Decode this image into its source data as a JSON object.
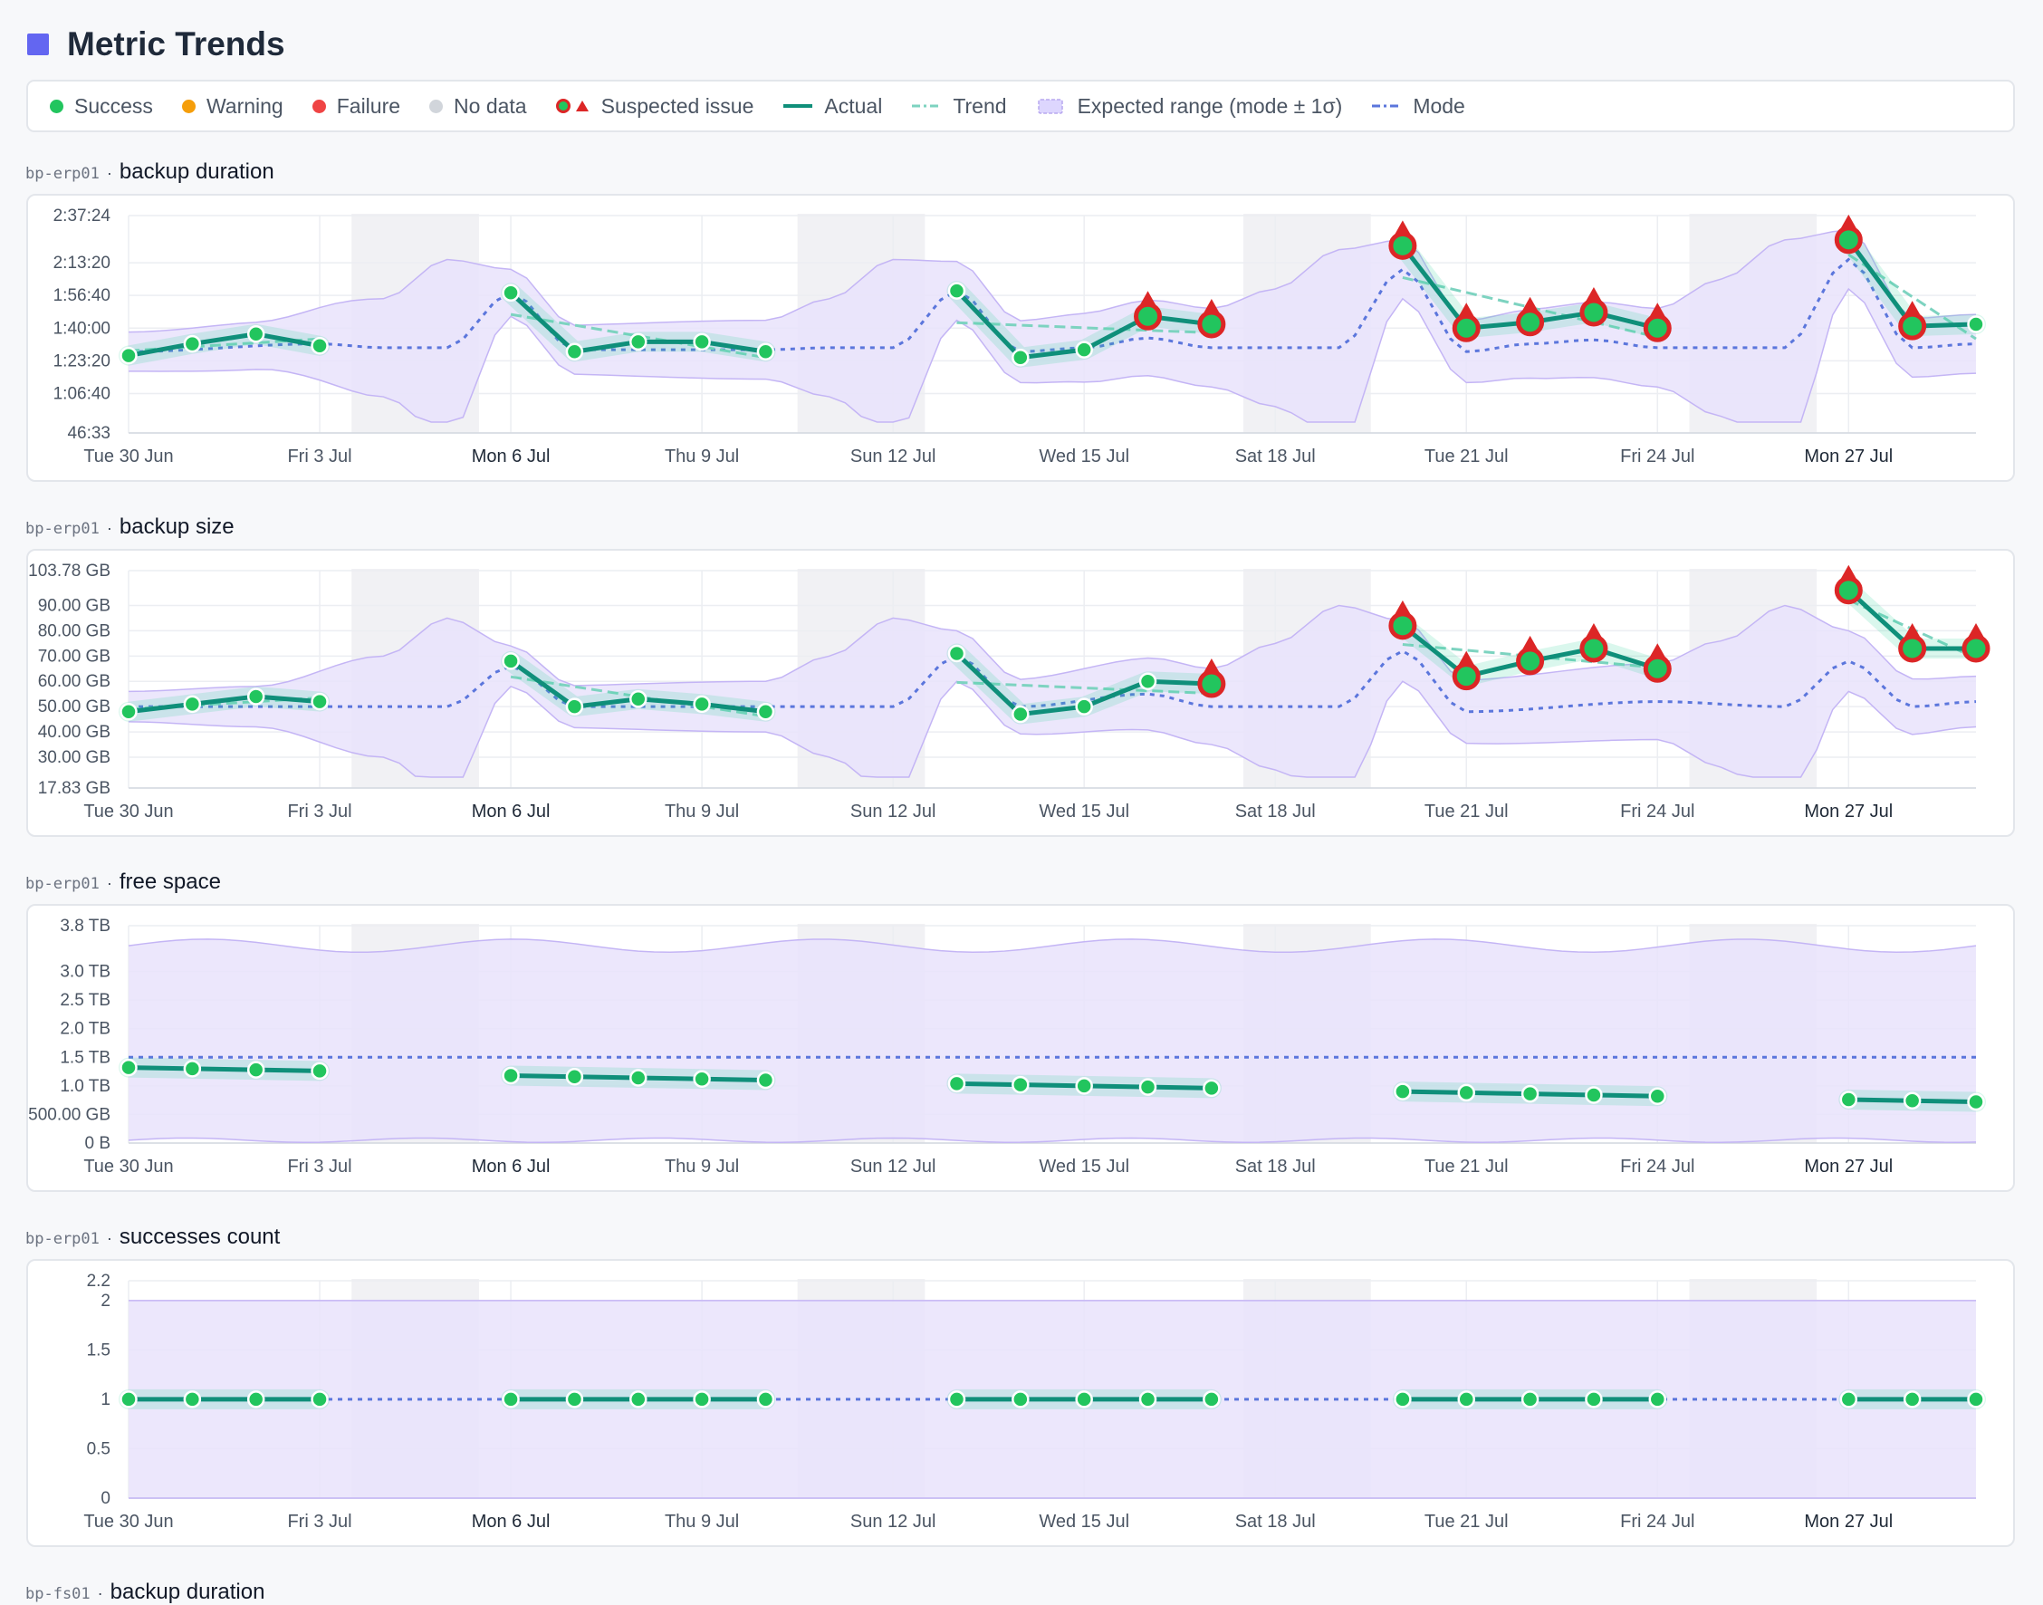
{
  "page": {
    "title": "Metric Trends"
  },
  "legend": [
    {
      "label": "Success",
      "kind": "dot",
      "color": "#22c55e"
    },
    {
      "label": "Warning",
      "kind": "dot",
      "color": "#f59e0b"
    },
    {
      "label": "Failure",
      "kind": "dot",
      "color": "#ef4444"
    },
    {
      "label": "No data",
      "kind": "dot",
      "color": "#d1d5db"
    },
    {
      "label": "Suspected issue",
      "kind": "suspect",
      "color": "#dc2626"
    },
    {
      "label": "Actual",
      "kind": "line",
      "color": "#0f8f7a"
    },
    {
      "label": "Trend",
      "kind": "dash",
      "color": "#7dd3c0"
    },
    {
      "label": "Expected range (mode ± 1σ)",
      "kind": "band",
      "color": "#ddd6fe"
    },
    {
      "label": "Mode",
      "kind": "dash",
      "color": "#5b76dc"
    }
  ],
  "colors": {
    "actual": "#0f8f7a",
    "success": "#22c55e",
    "suspect": "#dc2626",
    "trend": "#7dd3c0",
    "mode": "#5b76dc",
    "band_fill": "#e9e3fb",
    "band_stroke": "#c4b5f5",
    "weekend": "#f1f1f4",
    "grid": "#eceef2"
  },
  "panels": [
    {
      "host": "bp-erp01",
      "separator": "·",
      "metric": "backup duration"
    },
    {
      "host": "bp-erp01",
      "separator": "·",
      "metric": "backup size"
    },
    {
      "host": "bp-erp01",
      "separator": "·",
      "metric": "free space"
    },
    {
      "host": "bp-erp01",
      "separator": "·",
      "metric": "successes count"
    },
    {
      "host": "bp-fs01",
      "separator": "·",
      "metric": "backup duration"
    }
  ],
  "chart_data": [
    {
      "type": "line",
      "title": "backup duration",
      "x": [
        "Tue 30 Jun",
        "Fri 3 Jul",
        "Mon 6 Jul",
        "Thu 9 Jul",
        "Sun 12 Jul",
        "Wed 15 Jul",
        "Sat 18 Jul",
        "Tue 21 Jul",
        "Fri 24 Jul",
        "Mon 27 Jul"
      ],
      "y_ticks": [
        "2:37:24",
        "2:13:20",
        "1:56:40",
        "1:40:00",
        "1:23:20",
        "1:06:40",
        "46:33"
      ],
      "y_tick_values": [
        157.4,
        133.33,
        116.67,
        100,
        83.33,
        66.67,
        46.55
      ],
      "y_unit": "minutes",
      "ylim": [
        46.55,
        157.4
      ],
      "y_labels_at_equal_ticks": false,
      "segments": [
        {
          "points": [
            [
              0,
              86
            ],
            [
              1,
              92
            ],
            [
              2,
              97
            ],
            [
              3,
              91
            ]
          ],
          "suspect": []
        },
        {
          "points": [
            [
              6,
              118
            ],
            [
              7,
              88
            ],
            [
              8,
              93
            ],
            [
              9,
              93
            ],
            [
              10,
              88
            ]
          ],
          "suspect": []
        },
        {
          "points": [
            [
              13,
              119
            ],
            [
              14,
              85
            ],
            [
              15,
              89
            ],
            [
              16,
              106
            ],
            [
              17,
              102
            ]
          ],
          "suspect": [
            16,
            17
          ]
        },
        {
          "points": [
            [
              20,
              142
            ],
            [
              21,
              100
            ],
            [
              22,
              103
            ],
            [
              23,
              108
            ],
            [
              24,
              100
            ]
          ],
          "suspect": [
            20,
            21,
            22,
            23,
            24
          ]
        },
        {
          "points": [
            [
              27,
              145
            ],
            [
              28,
              101
            ],
            [
              29,
              102
            ]
          ],
          "suspect": [
            27,
            28
          ]
        }
      ],
      "mode_values": [
        [
          0,
          88
        ],
        [
          3,
          92
        ],
        [
          4,
          90
        ],
        [
          5,
          90
        ],
        [
          6,
          118
        ],
        [
          7,
          89
        ],
        [
          10,
          89
        ],
        [
          11,
          90
        ],
        [
          12,
          90
        ],
        [
          13,
          119
        ],
        [
          14,
          88
        ],
        [
          15,
          90
        ],
        [
          16,
          95
        ],
        [
          17,
          90
        ],
        [
          19,
          90
        ],
        [
          20,
          130
        ],
        [
          21,
          88
        ],
        [
          22,
          92
        ],
        [
          23,
          94
        ],
        [
          24,
          90
        ],
        [
          26,
          90
        ],
        [
          27,
          135
        ],
        [
          28,
          90
        ],
        [
          29,
          92
        ]
      ],
      "band_half_width": [
        [
          0,
          10
        ],
        [
          2,
          12
        ],
        [
          4,
          25
        ],
        [
          5,
          45
        ],
        [
          6,
          12
        ],
        [
          10,
          15
        ],
        [
          11,
          25
        ],
        [
          12,
          45
        ],
        [
          13,
          15
        ],
        [
          17,
          20
        ],
        [
          18,
          30
        ],
        [
          19,
          50
        ],
        [
          20,
          15
        ],
        [
          24,
          20
        ],
        [
          25,
          35
        ],
        [
          26,
          55
        ],
        [
          27,
          15
        ],
        [
          29,
          15
        ]
      ],
      "day_count": 30,
      "weekend_ranges": [
        [
          3.5,
          5.5
        ],
        [
          10.5,
          12.5
        ],
        [
          17.5,
          19.5
        ],
        [
          24.5,
          26.5
        ]
      ]
    },
    {
      "type": "line",
      "title": "backup size",
      "x": [
        "Tue 30 Jun",
        "Fri 3 Jul",
        "Mon 6 Jul",
        "Thu 9 Jul",
        "Sun 12 Jul",
        "Wed 15 Jul",
        "Sat 18 Jul",
        "Tue 21 Jul",
        "Fri 24 Jul",
        "Mon 27 Jul"
      ],
      "y_ticks": [
        "103.78 GB",
        "90.00 GB",
        "80.00 GB",
        "70.00 GB",
        "60.00 GB",
        "50.00 GB",
        "40.00 GB",
        "30.00 GB",
        "17.83 GB"
      ],
      "y_tick_values": [
        103.78,
        90,
        80,
        70,
        60,
        50,
        40,
        30,
        17.83
      ],
      "ylim": [
        17.83,
        103.78
      ],
      "segments": [
        {
          "points": [
            [
              0,
              48
            ],
            [
              1,
              51
            ],
            [
              2,
              54
            ],
            [
              3,
              52
            ]
          ],
          "suspect": []
        },
        {
          "points": [
            [
              6,
              68
            ],
            [
              7,
              50
            ],
            [
              8,
              53
            ],
            [
              9,
              51
            ],
            [
              10,
              48
            ]
          ],
          "suspect": []
        },
        {
          "points": [
            [
              13,
              71
            ],
            [
              14,
              47
            ],
            [
              15,
              50
            ],
            [
              16,
              60
            ],
            [
              17,
              59
            ]
          ],
          "suspect": [
            17
          ]
        },
        {
          "points": [
            [
              20,
              82
            ],
            [
              21,
              62
            ],
            [
              22,
              68
            ],
            [
              23,
              73
            ],
            [
              24,
              65
            ]
          ],
          "suspect": [
            20,
            21,
            22,
            23,
            24
          ]
        },
        {
          "points": [
            [
              27,
              96
            ],
            [
              28,
              73
            ],
            [
              29,
              73
            ]
          ],
          "suspect": [
            27,
            28,
            29
          ]
        }
      ],
      "mode_values": [
        [
          0,
          50
        ],
        [
          3,
          50
        ],
        [
          5,
          50
        ],
        [
          6,
          66
        ],
        [
          7,
          50
        ],
        [
          10,
          50
        ],
        [
          12,
          50
        ],
        [
          13,
          70
        ],
        [
          14,
          50
        ],
        [
          16,
          55
        ],
        [
          17,
          50
        ],
        [
          19,
          50
        ],
        [
          20,
          72
        ],
        [
          21,
          48
        ],
        [
          24,
          52
        ],
        [
          26,
          50
        ],
        [
          27,
          68
        ],
        [
          28,
          50
        ],
        [
          29,
          52
        ]
      ],
      "band_half_width": [
        [
          0,
          6
        ],
        [
          2,
          8
        ],
        [
          4,
          20
        ],
        [
          5,
          35
        ],
        [
          6,
          8
        ],
        [
          10,
          10
        ],
        [
          11,
          20
        ],
        [
          12,
          35
        ],
        [
          13,
          10
        ],
        [
          17,
          15
        ],
        [
          18,
          25
        ],
        [
          19,
          40
        ],
        [
          20,
          12
        ],
        [
          24,
          15
        ],
        [
          25,
          25
        ],
        [
          26,
          40
        ],
        [
          27,
          12
        ],
        [
          29,
          10
        ]
      ],
      "day_count": 30,
      "weekend_ranges": [
        [
          3.5,
          5.5
        ],
        [
          10.5,
          12.5
        ],
        [
          17.5,
          19.5
        ],
        [
          24.5,
          26.5
        ]
      ]
    },
    {
      "type": "line",
      "title": "free space",
      "x": [
        "Tue 30 Jun",
        "Fri 3 Jul",
        "Mon 6 Jul",
        "Thu 9 Jul",
        "Sun 12 Jul",
        "Wed 15 Jul",
        "Sat 18 Jul",
        "Tue 21 Jul",
        "Fri 24 Jul",
        "Mon 27 Jul"
      ],
      "y_ticks": [
        "3.8 TB",
        "3.0 TB",
        "2.5 TB",
        "2.0 TB",
        "1.5 TB",
        "1.0 TB",
        "500.00 GB",
        "0 B"
      ],
      "y_tick_values": [
        3.8,
        3.0,
        2.5,
        2.0,
        1.5,
        1.0,
        0.5,
        0
      ],
      "ylim": [
        0,
        3.8
      ],
      "segments": [
        {
          "points": [
            [
              0,
              1.32
            ],
            [
              1,
              1.3
            ],
            [
              2,
              1.28
            ],
            [
              3,
              1.26
            ]
          ],
          "suspect": []
        },
        {
          "points": [
            [
              6,
              1.18
            ],
            [
              7,
              1.16
            ],
            [
              8,
              1.14
            ],
            [
              9,
              1.12
            ],
            [
              10,
              1.1
            ]
          ],
          "suspect": []
        },
        {
          "points": [
            [
              13,
              1.04
            ],
            [
              14,
              1.02
            ],
            [
              15,
              1.0
            ],
            [
              16,
              0.98
            ],
            [
              17,
              0.96
            ]
          ],
          "suspect": []
        },
        {
          "points": [
            [
              20,
              0.9
            ],
            [
              21,
              0.88
            ],
            [
              22,
              0.86
            ],
            [
              23,
              0.84
            ],
            [
              24,
              0.82
            ]
          ],
          "suspect": []
        },
        {
          "points": [
            [
              27,
              0.76
            ],
            [
              28,
              0.74
            ],
            [
              29,
              0.72
            ]
          ],
          "suspect": []
        }
      ],
      "mode_values": [
        [
          0,
          1.5
        ],
        [
          29,
          1.5
        ]
      ],
      "band": [
        0.05,
        3.45
      ],
      "day_count": 30,
      "weekend_ranges": [
        [
          3.5,
          5.5
        ],
        [
          10.5,
          12.5
        ],
        [
          17.5,
          19.5
        ],
        [
          24.5,
          26.5
        ]
      ]
    },
    {
      "type": "line",
      "title": "successes count",
      "x": [
        "Tue 30 Jun",
        "Fri 3 Jul",
        "Mon 6 Jul",
        "Thu 9 Jul",
        "Sun 12 Jul",
        "Wed 15 Jul",
        "Sat 18 Jul",
        "Tue 21 Jul",
        "Fri 24 Jul",
        "Mon 27 Jul"
      ],
      "y_ticks": [
        "2.2",
        "2",
        "1.5",
        "1",
        "0.5",
        "0"
      ],
      "y_tick_values": [
        2.2,
        2,
        1.5,
        1,
        0.5,
        0
      ],
      "ylim": [
        0,
        2.2
      ],
      "segments": [
        {
          "points": [
            [
              0,
              1
            ],
            [
              1,
              1
            ],
            [
              2,
              1
            ],
            [
              3,
              1
            ]
          ],
          "suspect": []
        },
        {
          "points": [
            [
              6,
              1
            ],
            [
              7,
              1
            ],
            [
              8,
              1
            ],
            [
              9,
              1
            ],
            [
              10,
              1
            ]
          ],
          "suspect": []
        },
        {
          "points": [
            [
              13,
              1
            ],
            [
              14,
              1
            ],
            [
              15,
              1
            ],
            [
              16,
              1
            ],
            [
              17,
              1
            ]
          ],
          "suspect": []
        },
        {
          "points": [
            [
              20,
              1
            ],
            [
              21,
              1
            ],
            [
              22,
              1
            ],
            [
              23,
              1
            ],
            [
              24,
              1
            ]
          ],
          "suspect": []
        },
        {
          "points": [
            [
              27,
              1
            ],
            [
              28,
              1
            ],
            [
              29,
              1
            ]
          ],
          "suspect": []
        }
      ],
      "mode_values": [
        [
          0,
          1
        ],
        [
          29,
          1
        ]
      ],
      "band": [
        0,
        2
      ],
      "day_count": 30,
      "weekend_ranges": [
        [
          3.5,
          5.5
        ],
        [
          10.5,
          12.5
        ],
        [
          17.5,
          19.5
        ],
        [
          24.5,
          26.5
        ]
      ]
    }
  ]
}
